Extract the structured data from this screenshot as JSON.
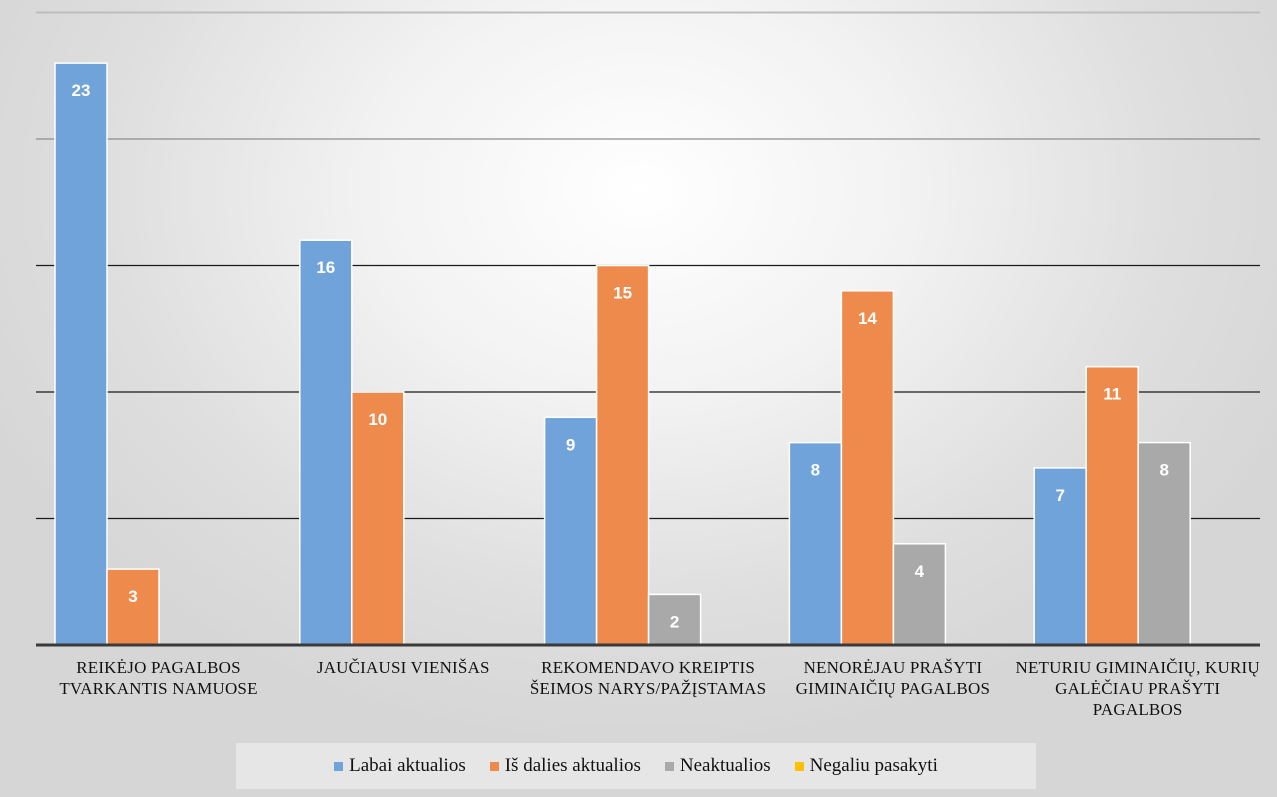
{
  "chart_data": {
    "type": "bar",
    "categories": [
      "REIKĖJO PAGALBOS TVARKANTIS NAMUOSE",
      "JAUČIAUSI VIENIŠAS",
      "REKOMENDAVO KREIPTIS ŠEIMOS NARYS/PAŽĮSTAMAS",
      "NENORĖJAU PRAŠYTI GIMINAIČIŲ PAGALBOS",
      "NETURIU GIMINAIČIŲ, KURIŲ GALĖČIAU PRAŠYTI PAGALBOS"
    ],
    "series": [
      {
        "name": "Labai aktualios",
        "color": "#6fa3d9",
        "values": [
          23,
          16,
          9,
          8,
          7
        ]
      },
      {
        "name": "Iš dalies aktualios",
        "color": "#ee8b4c",
        "values": [
          3,
          10,
          15,
          14,
          11
        ]
      },
      {
        "name": "Neaktualios",
        "color": "#a9a9a9",
        "values": [
          null,
          null,
          2,
          4,
          8
        ]
      },
      {
        "name": "Negaliu pasakyti",
        "color": "#ffc000",
        "values": [
          null,
          null,
          null,
          null,
          null
        ]
      }
    ],
    "ylim": [
      0,
      25
    ],
    "grid": true,
    "legend_position": "bottom",
    "data_labels": true
  }
}
